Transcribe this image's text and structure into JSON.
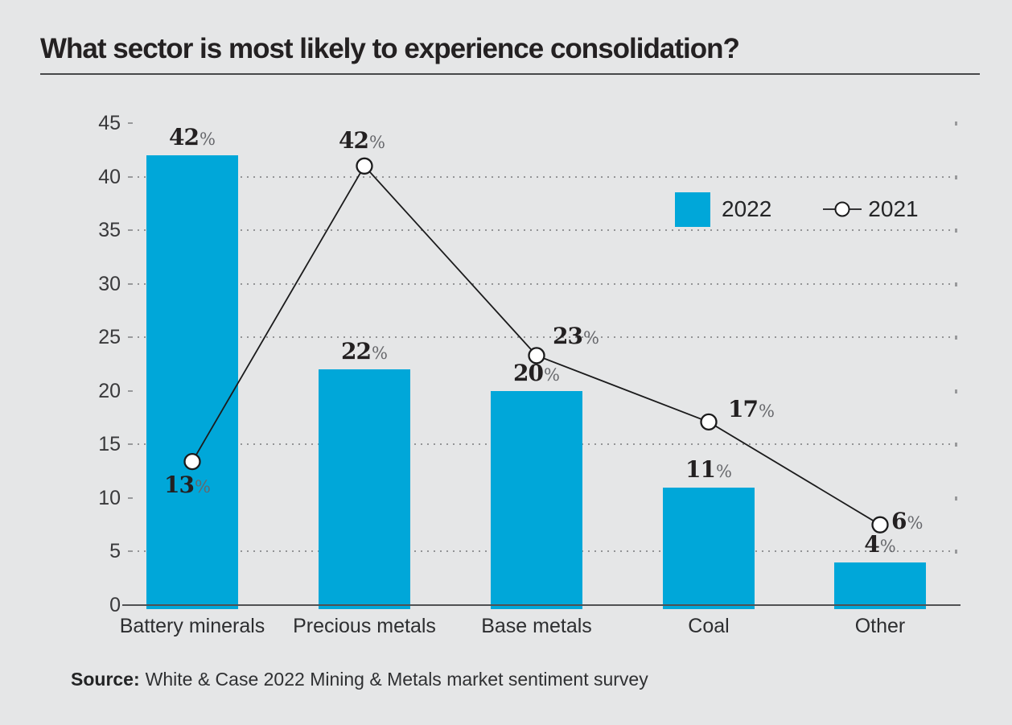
{
  "chart_data": {
    "type": "bar",
    "title": "What sector is most likely to experience consolidation?",
    "categories": [
      "Battery minerals",
      "Precious metals",
      "Base metals",
      "Coal",
      "Other"
    ],
    "series": [
      {
        "name": "2022",
        "kind": "bar",
        "color": "#00a7d9",
        "values": [
          42,
          22,
          20,
          11,
          4
        ],
        "unit": "%"
      },
      {
        "name": "2021",
        "kind": "line",
        "color": "#1b1b1c",
        "marker": "open-circle",
        "values": [
          13,
          42,
          23,
          17,
          6
        ],
        "unit": "%",
        "marker_plot_values": [
          13.4,
          41,
          23.3,
          17.1,
          7.5
        ]
      }
    ],
    "xlabel": "",
    "ylabel": "",
    "ylim": [
      0,
      45
    ],
    "y_ticks": [
      0,
      5,
      10,
      15,
      20,
      25,
      30,
      35,
      40,
      45
    ],
    "gridline_values": [
      5,
      15,
      25,
      30,
      35,
      40
    ],
    "grid_style": "dotted",
    "legend_position": "upper-right-inside"
  },
  "source": {
    "label": "Source:",
    "text": "White & Case 2022 Mining & Metals market sentiment survey"
  },
  "colors": {
    "background": "#e5e6e7",
    "bar_fill": "#00a7d9",
    "line_stroke": "#1b1b1c",
    "grid_dot": "#939496",
    "axis_line": "#505153",
    "title_text": "#242122",
    "value_text": "#232021",
    "percent_sign": "#66676b"
  }
}
